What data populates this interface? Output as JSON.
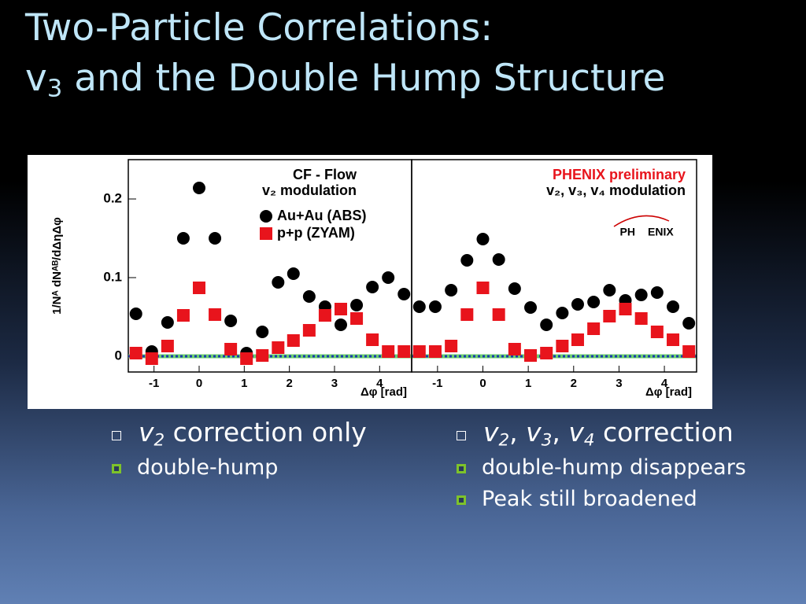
{
  "slide": {
    "title": [
      [
        {
          "text": "Two-Particle Correlations:",
          "style": "plain"
        }
      ],
      [
        {
          "text": "v",
          "style": "plain"
        },
        {
          "text": "3",
          "style": "sub"
        },
        {
          "text": " and the Double Hump Structure",
          "style": "plain"
        }
      ]
    ],
    "columns": [
      {
        "bullet": [
          {
            "text": "v",
            "style": "italic"
          },
          {
            "text": "2",
            "style": "italic-sub"
          },
          {
            "text": " correction only",
            "style": "plain"
          }
        ],
        "items": [
          "double-hump"
        ]
      },
      {
        "bullet": [
          {
            "text": "v",
            "style": "italic"
          },
          {
            "text": "2",
            "style": "italic-sub"
          },
          {
            "text": ", ",
            "style": "plain"
          },
          {
            "text": "v",
            "style": "italic"
          },
          {
            "text": "3",
            "style": "italic-sub"
          },
          {
            "text": ", ",
            "style": "plain"
          },
          {
            "text": "v",
            "style": "italic"
          },
          {
            "text": "4",
            "style": "italic-sub"
          },
          {
            "text": " correction",
            "style": "plain"
          }
        ],
        "items": [
          "double-hump disappears",
          "Peak still broadened"
        ]
      }
    ]
  },
  "chart_data": [
    {
      "type": "scatter",
      "y_label": "1/Nᴬ dNᴬᴮ/dΔηΔφ",
      "x_label": "Δφ [rad]",
      "annotations": [
        "CF - Flow",
        "v₂ modulation"
      ],
      "x": [
        -1.4,
        -1.05,
        -0.7,
        -0.35,
        0,
        0.35,
        0.7,
        1.05,
        1.4,
        1.75,
        2.09,
        2.44,
        2.79,
        3.14,
        3.49,
        3.84,
        4.19,
        4.54
      ],
      "series": [
        {
          "name": "Au+Au (ABS)",
          "color": "#000000",
          "marker": "circle",
          "values": [
            0.054,
            0.006,
            0.043,
            0.15,
            0.214,
            0.15,
            0.045,
            0.004,
            0.031,
            0.094,
            0.105,
            0.076,
            0.063,
            0.04,
            0.065,
            0.088,
            0.1,
            0.079
          ]
        },
        {
          "name": "p+p (ZYAM)",
          "color": "#e8141c",
          "marker": "square",
          "values": [
            0.004,
            -0.003,
            0.013,
            0.052,
            0.087,
            0.053,
            0.009,
            -0.003,
            0.001,
            0.011,
            0.02,
            0.033,
            0.052,
            0.06,
            0.048,
            0.021,
            0.006,
            0.006
          ]
        }
      ],
      "xlim": [
        -1.57,
        4.71
      ],
      "xticks": [
        -1,
        0,
        1,
        2,
        3,
        4
      ],
      "ylim": [
        -0.02,
        0.25
      ],
      "yticks": [
        0,
        0.1,
        0.2
      ]
    },
    {
      "type": "scatter",
      "x_label": "Δφ [rad]",
      "annotations": [
        "PHENIX preliminary",
        "v₂, v₃, v₄ modulation"
      ],
      "logo": [
        "PH",
        "ENIX"
      ],
      "x": [
        -1.4,
        -1.05,
        -0.7,
        -0.35,
        0,
        0.35,
        0.7,
        1.05,
        1.4,
        1.75,
        2.09,
        2.44,
        2.79,
        3.14,
        3.49,
        3.84,
        4.19,
        4.54
      ],
      "series": [
        {
          "color": "#000000",
          "marker": "circle",
          "values": [
            0.063,
            0.063,
            0.084,
            0.122,
            0.149,
            0.123,
            0.086,
            0.062,
            0.04,
            0.055,
            0.066,
            0.069,
            0.084,
            0.071,
            0.078,
            0.081,
            0.063,
            0.042
          ]
        },
        {
          "color": "#e8141c",
          "marker": "square",
          "values": [
            0.006,
            0.006,
            0.013,
            0.053,
            0.087,
            0.053,
            0.009,
            0.001,
            0.004,
            0.013,
            0.021,
            0.035,
            0.051,
            0.06,
            0.048,
            0.031,
            0.021,
            0.006
          ]
        }
      ],
      "xlim": [
        -1.57,
        4.71
      ],
      "xticks": [
        -1,
        0,
        1,
        2,
        3,
        4
      ],
      "ylim": [
        -0.02,
        0.25
      ]
    }
  ]
}
